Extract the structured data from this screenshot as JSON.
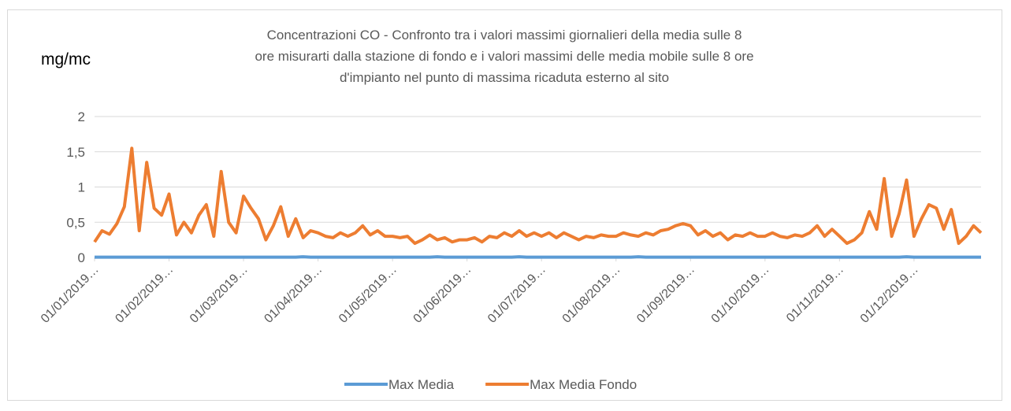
{
  "chart_data": {
    "type": "line",
    "title": "Concentrazioni CO - Confronto tra i valori massimi giornalieri della media sulle 8 ore misurarti dalla stazione di fondo e i valori massimi delle media mobile sulle 8 ore d'impianto nel punto di massima ricaduta esterno al sito",
    "ylabel": "mg/mc",
    "categories": [
      "01/01/2019…",
      null,
      null,
      null,
      null,
      null,
      null,
      null,
      null,
      null,
      "01/02/2019…",
      null,
      null,
      null,
      null,
      null,
      null,
      null,
      null,
      null,
      "01/03/2019…",
      null,
      null,
      null,
      null,
      null,
      null,
      null,
      null,
      null,
      "01/04/2019…",
      null,
      null,
      null,
      null,
      null,
      null,
      null,
      null,
      null,
      "01/05/2019…",
      null,
      null,
      null,
      null,
      null,
      null,
      null,
      null,
      null,
      "01/06/2019…",
      null,
      null,
      null,
      null,
      null,
      null,
      null,
      null,
      null,
      "01/07/2019…",
      null,
      null,
      null,
      null,
      null,
      null,
      null,
      null,
      null,
      "01/08/2019…",
      null,
      null,
      null,
      null,
      null,
      null,
      null,
      null,
      null,
      "01/09/2019…",
      null,
      null,
      null,
      null,
      null,
      null,
      null,
      null,
      null,
      "01/10/2019…",
      null,
      null,
      null,
      null,
      null,
      null,
      null,
      null,
      null,
      "01/11/2019…",
      null,
      null,
      null,
      null,
      null,
      null,
      null,
      null,
      null,
      "01/12/2019…",
      null,
      null,
      null,
      null,
      null,
      null,
      null,
      null,
      null
    ],
    "series": [
      {
        "name": "Max Media",
        "color": "#5b9bd5",
        "values": [
          0.005,
          0.005,
          0.005,
          0.005,
          0.005,
          0.005,
          0.005,
          0.005,
          0.005,
          0.005,
          0.005,
          0.005,
          0.005,
          0.005,
          0.005,
          0.005,
          0.005,
          0.005,
          0.005,
          0.005,
          0.005,
          0.005,
          0.005,
          0.005,
          0.005,
          0.005,
          0.005,
          0.005,
          0.01,
          0.005,
          0.005,
          0.005,
          0.005,
          0.005,
          0.005,
          0.005,
          0.005,
          0.005,
          0.005,
          0.005,
          0.005,
          0.005,
          0.005,
          0.005,
          0.005,
          0.005,
          0.01,
          0.005,
          0.005,
          0.005,
          0.005,
          0.005,
          0.005,
          0.005,
          0.005,
          0.005,
          0.005,
          0.01,
          0.005,
          0.005,
          0.005,
          0.005,
          0.005,
          0.005,
          0.005,
          0.005,
          0.005,
          0.005,
          0.005,
          0.005,
          0.005,
          0.005,
          0.005,
          0.01,
          0.005,
          0.005,
          0.005,
          0.005,
          0.005,
          0.005,
          0.005,
          0.005,
          0.005,
          0.005,
          0.005,
          0.005,
          0.005,
          0.005,
          0.005,
          0.005,
          0.005,
          0.005,
          0.005,
          0.005,
          0.005,
          0.005,
          0.005,
          0.005,
          0.005,
          0.005,
          0.005,
          0.005,
          0.005,
          0.005,
          0.005,
          0.005,
          0.005,
          0.005,
          0.005,
          0.01,
          0.005,
          0.005,
          0.005,
          0.005,
          0.005,
          0.005,
          0.005,
          0.005,
          0.005,
          0.005
        ]
      },
      {
        "name": "Max Media Fondo",
        "color": "#ed7d31",
        "values": [
          0.22,
          0.38,
          0.33,
          0.48,
          0.72,
          1.55,
          0.38,
          1.35,
          0.7,
          0.6,
          0.9,
          0.32,
          0.5,
          0.35,
          0.6,
          0.75,
          0.3,
          1.22,
          0.5,
          0.35,
          0.87,
          0.7,
          0.55,
          0.25,
          0.45,
          0.72,
          0.3,
          0.55,
          0.28,
          0.38,
          0.35,
          0.3,
          0.28,
          0.35,
          0.3,
          0.35,
          0.45,
          0.32,
          0.38,
          0.3,
          0.3,
          0.28,
          0.3,
          0.2,
          0.25,
          0.32,
          0.25,
          0.28,
          0.22,
          0.25,
          0.25,
          0.28,
          0.22,
          0.3,
          0.28,
          0.35,
          0.3,
          0.38,
          0.3,
          0.35,
          0.3,
          0.35,
          0.28,
          0.35,
          0.3,
          0.25,
          0.3,
          0.28,
          0.32,
          0.3,
          0.3,
          0.35,
          0.32,
          0.3,
          0.35,
          0.32,
          0.38,
          0.4,
          0.45,
          0.48,
          0.45,
          0.32,
          0.38,
          0.3,
          0.35,
          0.25,
          0.32,
          0.3,
          0.35,
          0.3,
          0.3,
          0.35,
          0.3,
          0.28,
          0.32,
          0.3,
          0.35,
          0.45,
          0.3,
          0.4,
          0.3,
          0.2,
          0.25,
          0.35,
          0.65,
          0.4,
          1.12,
          0.3,
          0.62,
          1.1,
          0.3,
          0.55,
          0.75,
          0.7,
          0.4,
          0.68,
          0.2,
          0.3,
          0.45,
          0.35
        ]
      }
    ],
    "ylim": [
      0,
      2
    ],
    "yticks": [
      0,
      {
        "value": 0.5,
        "label": "0,5"
      },
      1,
      {
        "value": 1.5,
        "label": "1,5"
      },
      2
    ],
    "grid": true,
    "legend": "bottom"
  }
}
